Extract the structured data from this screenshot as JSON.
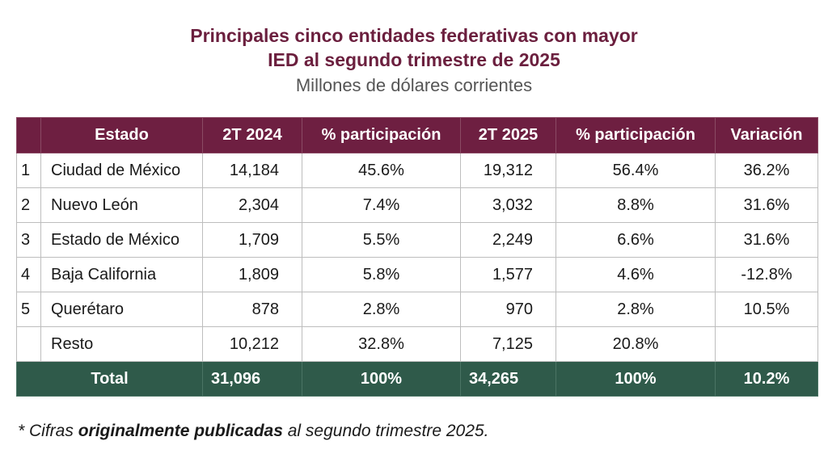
{
  "title": {
    "line1": "Principales cinco entidades federativas con mayor",
    "line2": "IED al segundo trimestre de 2025",
    "subtitle": "Millones de dólares corrientes"
  },
  "table": {
    "headers": [
      "",
      "Estado",
      "2T 2024",
      "% participación",
      "2T 2025",
      "% participación",
      "Variación"
    ],
    "rows": [
      {
        "rank": "1",
        "state": "Ciudad de México",
        "v2024": "14,184",
        "p2024": "45.6%",
        "v2025": "19,312",
        "p2025": "56.4%",
        "variation": "36.2%"
      },
      {
        "rank": "2",
        "state": "Nuevo León",
        "v2024": "2,304",
        "p2024": "7.4%",
        "v2025": "3,032",
        "p2025": "8.8%",
        "variation": "31.6%"
      },
      {
        "rank": "3",
        "state": "Estado de México",
        "v2024": "1,709",
        "p2024": "5.5%",
        "v2025": "2,249",
        "p2025": "6.6%",
        "variation": "31.6%"
      },
      {
        "rank": "4",
        "state": "Baja California",
        "v2024": "1,809",
        "p2024": "5.8%",
        "v2025": "1,577",
        "p2025": "4.6%",
        "variation": "-12.8%"
      },
      {
        "rank": "5",
        "state": "Querétaro",
        "v2024": "878",
        "p2024": "2.8%",
        "v2025": "970",
        "p2025": "2.8%",
        "variation": "10.5%"
      },
      {
        "rank": "",
        "state": "Resto",
        "v2024": "10,212",
        "p2024": "32.8%",
        "v2025": "7,125",
        "p2025": "20.8%",
        "variation": ""
      }
    ],
    "total": {
      "label": "Total",
      "v2024": "31,096",
      "p2024": "100%",
      "v2025": "34,265",
      "p2025": "100%",
      "variation": "10.2%"
    }
  },
  "footnote": {
    "prefix": "* Cifras ",
    "bold": "originalmente publicadas",
    "suffix": " al segundo trimestre 2025."
  },
  "colors": {
    "header_bg": "#6e1f41",
    "title_color": "#6b1f3e",
    "total_bg": "#2f5a4a"
  }
}
